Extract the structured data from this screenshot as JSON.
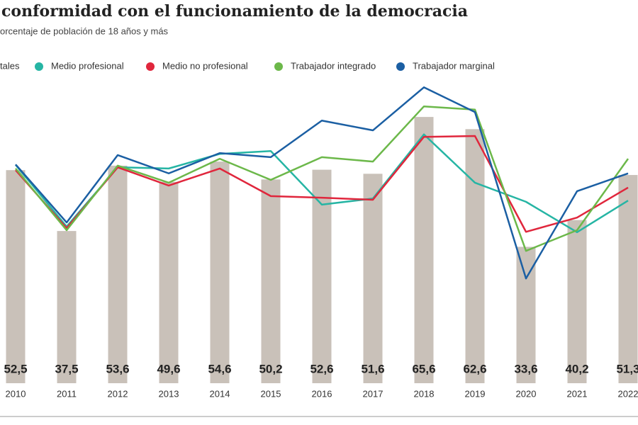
{
  "chart_data": {
    "type": "combo",
    "title": "conformidad con el funcionamiento de la democracia",
    "subtitle": "orcentaje de población de 18 años y más",
    "categories": [
      "2010",
      "2011",
      "2012",
      "2013",
      "2014",
      "2015",
      "2016",
      "2017",
      "2018",
      "2019",
      "2020",
      "2021",
      "2022"
    ],
    "ylim": [
      0,
      90
    ],
    "series": [
      {
        "name": "tales",
        "type": "bar",
        "color": "#c9c1b9",
        "values": [
          52.5,
          37.5,
          53.6,
          49.6,
          54.6,
          50.2,
          52.6,
          51.6,
          65.6,
          62.6,
          33.6,
          40.2,
          51.3
        ],
        "value_labels": [
          "52,5",
          "37,5",
          "53,6",
          "49,6",
          "54,6",
          "50,2",
          "52,6",
          "51,6",
          "65,6",
          "62,6",
          "33,6",
          "40,2",
          "51,3"
        ]
      },
      {
        "name": "Medio profesional",
        "type": "line",
        "color": "#26b5a4",
        "values": [
          53.8,
          38.6,
          53.2,
          52.9,
          56.5,
          57.2,
          44.0,
          45.5,
          61.3,
          49.4,
          44.7,
          37.2,
          45.0
        ]
      },
      {
        "name": "Medio no profesional",
        "type": "line",
        "color": "#e0263c",
        "values": [
          52.5,
          38.2,
          53.2,
          48.7,
          52.9,
          46.1,
          45.7,
          45.2,
          60.7,
          60.9,
          37.3,
          40.8,
          48.2
        ]
      },
      {
        "name": "Trabajador integrado",
        "type": "line",
        "color": "#6cb84a",
        "values": [
          52.9,
          37.7,
          53.6,
          49.4,
          55.3,
          50.1,
          55.7,
          54.6,
          68.2,
          67.4,
          32.6,
          37.7,
          55.3
        ]
      },
      {
        "name": "Trabajador marginal",
        "type": "line",
        "color": "#1b5fa3",
        "values": [
          53.9,
          39.6,
          56.2,
          51.7,
          56.7,
          55.7,
          64.7,
          62.3,
          72.9,
          66.8,
          25.8,
          47.3,
          51.7
        ]
      }
    ]
  }
}
